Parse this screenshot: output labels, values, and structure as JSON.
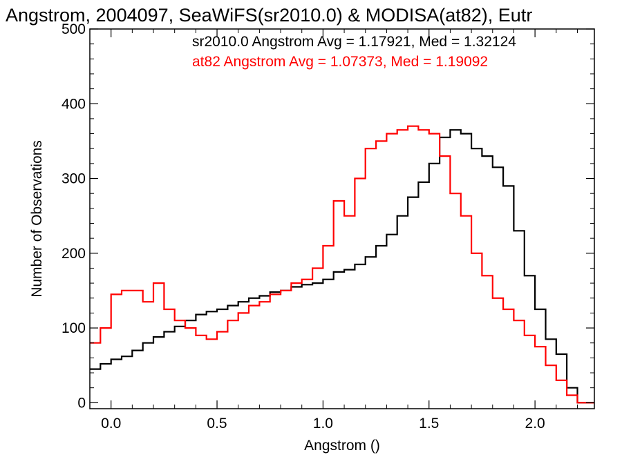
{
  "chart_data": {
    "type": "line",
    "title": "Angstrom, 2004097, SeaWiFS(sr2010.0) & MODISA(at82), Eutr",
    "xlabel": "Angstrom ()",
    "ylabel": "Number of Observations",
    "xlim": [
      -0.1,
      2.28
    ],
    "ylim": [
      -8,
      500
    ],
    "xticks": [
      0.0,
      0.5,
      1.0,
      1.5,
      2.0
    ],
    "xtick_labels": [
      "0.0",
      "0.5",
      "1.0",
      "1.5",
      "2.0"
    ],
    "yticks": [
      0,
      100,
      200,
      300,
      400,
      500
    ],
    "ytick_labels": [
      "0",
      "100",
      "200",
      "300",
      "400",
      "500"
    ],
    "grid": false,
    "style": "step",
    "legend": [
      {
        "text": "sr2010.0 Angstrom Avg = 1.17921, Med = 1.32124",
        "color": "#000000"
      },
      {
        "text": "at82 Angstrom Avg = 1.07373, Med = 1.19092",
        "color": "#ff0000"
      }
    ],
    "series": [
      {
        "color": "#000000",
        "x": [
          -0.1,
          -0.05,
          0.0,
          0.05,
          0.1,
          0.15,
          0.2,
          0.25,
          0.3,
          0.35,
          0.4,
          0.45,
          0.5,
          0.55,
          0.6,
          0.65,
          0.7,
          0.75,
          0.8,
          0.85,
          0.9,
          0.95,
          1.0,
          1.05,
          1.1,
          1.15,
          1.2,
          1.25,
          1.3,
          1.35,
          1.4,
          1.45,
          1.5,
          1.55,
          1.6,
          1.65,
          1.7,
          1.75,
          1.8,
          1.85,
          1.9,
          1.95,
          2.0,
          2.05,
          2.1,
          2.15,
          2.2,
          2.25
        ],
        "values": [
          45,
          52,
          58,
          62,
          70,
          80,
          88,
          95,
          102,
          110,
          118,
          122,
          125,
          130,
          135,
          140,
          143,
          148,
          150,
          155,
          158,
          160,
          165,
          175,
          178,
          185,
          195,
          210,
          225,
          250,
          275,
          295,
          320,
          355,
          365,
          360,
          340,
          330,
          315,
          290,
          230,
          170,
          125,
          85,
          65,
          20,
          0,
          0
        ]
      },
      {
        "color": "#ff0000",
        "x": [
          -0.1,
          -0.05,
          0.0,
          0.05,
          0.1,
          0.15,
          0.2,
          0.25,
          0.3,
          0.35,
          0.4,
          0.45,
          0.5,
          0.55,
          0.6,
          0.65,
          0.7,
          0.75,
          0.8,
          0.85,
          0.9,
          0.95,
          1.0,
          1.05,
          1.1,
          1.15,
          1.2,
          1.25,
          1.3,
          1.35,
          1.4,
          1.45,
          1.5,
          1.55,
          1.6,
          1.65,
          1.7,
          1.75,
          1.8,
          1.85,
          1.9,
          1.95,
          2.0,
          2.05,
          2.1,
          2.15,
          2.2,
          2.25
        ],
        "values": [
          80,
          100,
          145,
          150,
          150,
          135,
          160,
          125,
          110,
          100,
          90,
          85,
          95,
          110,
          120,
          130,
          135,
          145,
          150,
          160,
          165,
          180,
          210,
          270,
          250,
          300,
          340,
          350,
          360,
          365,
          370,
          365,
          360,
          330,
          280,
          250,
          200,
          170,
          140,
          125,
          110,
          90,
          75,
          50,
          30,
          10,
          0,
          0
        ]
      }
    ]
  }
}
